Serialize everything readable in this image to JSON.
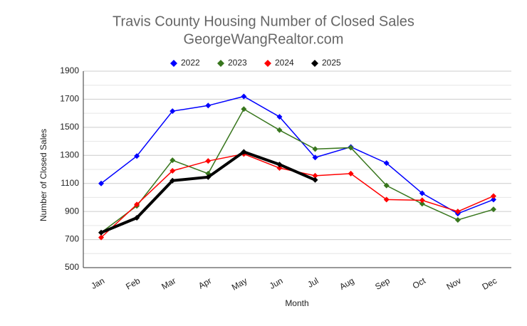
{
  "chart_data": {
    "type": "line",
    "title": "Travis County Housing Number of Closed Sales",
    "subtitle": "GeorgeWangRealtor.com",
    "x_label": "Month",
    "y_label": "Number of Closed Sales",
    "categories": [
      "Jan",
      "Feb",
      "Mar",
      "Apr",
      "May",
      "Jun",
      "Jul",
      "Aug",
      "Sep",
      "Oct",
      "Nov",
      "Dec"
    ],
    "series": [
      {
        "name": "2022",
        "color": "#0000ff",
        "width": 1.5,
        "values": [
          1100,
          1295,
          1615,
          1655,
          1720,
          1575,
          1285,
          1360,
          1245,
          1030,
          885,
          985
        ]
      },
      {
        "name": "2023",
        "color": "#38761d",
        "width": 1.5,
        "values": [
          750,
          940,
          1265,
          1170,
          1630,
          1480,
          1345,
          1355,
          1085,
          955,
          840,
          915
        ]
      },
      {
        "name": "2024",
        "color": "#ff0000",
        "width": 1.5,
        "values": [
          715,
          950,
          1190,
          1260,
          1310,
          1210,
          1155,
          1170,
          985,
          980,
          900,
          1010
        ]
      },
      {
        "name": "2025",
        "color": "#000000",
        "width": 4,
        "values": [
          750,
          855,
          1120,
          1145,
          1325,
          1235,
          1125,
          null,
          null,
          null,
          null,
          null
        ]
      }
    ],
    "ylim": [
      500,
      1900
    ],
    "yticks": [
      500,
      700,
      900,
      1100,
      1300,
      1500,
      1700,
      1900
    ],
    "minor_yticks": [
      600,
      800,
      1000,
      1200,
      1400,
      1600,
      1800
    ],
    "grid": true,
    "legend": "top"
  }
}
